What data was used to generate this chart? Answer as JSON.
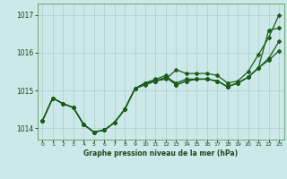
{
  "background_color": "#cce8e8",
  "grid_color": "#aacece",
  "line_color": "#1a5c1a",
  "xlim": [
    -0.5,
    23.5
  ],
  "ylim": [
    1013.7,
    1017.3
  ],
  "yticks": [
    1014,
    1015,
    1016,
    1017
  ],
  "xticks": [
    0,
    1,
    2,
    3,
    4,
    5,
    6,
    7,
    8,
    9,
    10,
    11,
    12,
    13,
    14,
    15,
    16,
    17,
    18,
    19,
    20,
    21,
    22,
    23
  ],
  "xlabel": "Graphe pression niveau de la mer (hPa)",
  "series1": [
    1014.2,
    1014.8,
    1014.65,
    1014.55,
    1014.1,
    1013.9,
    1013.95,
    1014.15,
    1014.5,
    1015.05,
    1015.15,
    1015.25,
    1015.3,
    1015.55,
    1015.45,
    1015.45,
    1015.45,
    1015.4,
    1015.2,
    1015.25,
    1015.5,
    1015.95,
    1016.4,
    1017.0
  ],
  "series2": [
    1014.2,
    1014.8,
    1014.65,
    1014.55,
    1014.1,
    1013.9,
    1013.95,
    1014.15,
    1014.5,
    1015.05,
    1015.2,
    1015.3,
    1015.4,
    1015.15,
    1015.25,
    1015.3,
    1015.3,
    1015.25,
    1015.1,
    1015.2,
    1015.35,
    1015.6,
    1015.8,
    1016.05
  ],
  "series3": [
    1014.2,
    1014.8,
    1014.65,
    1014.55,
    1014.1,
    1013.9,
    1013.95,
    1014.15,
    1014.5,
    1015.05,
    1015.2,
    1015.25,
    1015.35,
    1015.2,
    1015.3,
    1015.3,
    1015.3,
    1015.25,
    1015.1,
    1015.2,
    1015.35,
    1015.6,
    1016.6,
    1016.65
  ],
  "series4": [
    1014.2,
    1014.8,
    1014.65,
    1014.55,
    1014.1,
    1013.9,
    1013.95,
    1014.15,
    1014.5,
    1015.05,
    1015.2,
    1015.25,
    1015.35,
    1015.15,
    1015.25,
    1015.3,
    1015.3,
    1015.25,
    1015.1,
    1015.2,
    1015.35,
    1015.6,
    1015.85,
    1016.3
  ],
  "figsize": [
    3.2,
    2.0
  ],
  "dpi": 100
}
